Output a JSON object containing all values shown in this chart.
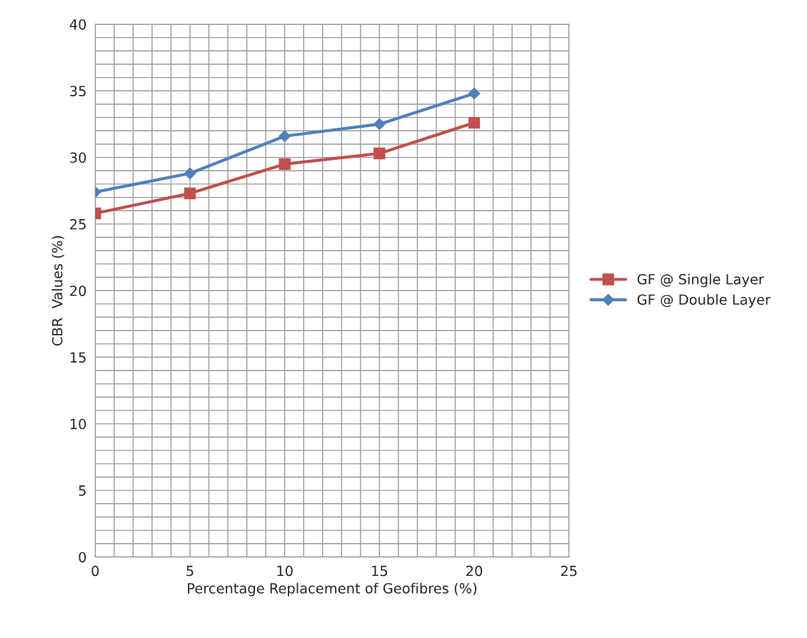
{
  "chart_data": {
    "type": "line",
    "xlabel": "Percentage Replacement of Geofibres (%)",
    "ylabel": "CBR  Values (%)",
    "x": [
      0,
      5,
      10,
      15,
      20
    ],
    "series": [
      {
        "name": "GF @ Single Layer",
        "color": "#c0504d",
        "marker": "square",
        "values": [
          25.8,
          27.3,
          29.5,
          30.3,
          32.6
        ]
      },
      {
        "name": "GF @ Double Layer",
        "color": "#4f81bd",
        "marker": "diamond",
        "values": [
          27.4,
          28.8,
          31.6,
          32.5,
          34.8
        ]
      }
    ],
    "xlim": [
      0,
      25
    ],
    "xticks": [
      0,
      5,
      10,
      15,
      20,
      25
    ],
    "ylim": [
      0,
      40
    ],
    "yticks": [
      0,
      5,
      10,
      15,
      20,
      25,
      30,
      35,
      40
    ],
    "grid": true,
    "legend": "right",
    "line_style": "solid"
  }
}
